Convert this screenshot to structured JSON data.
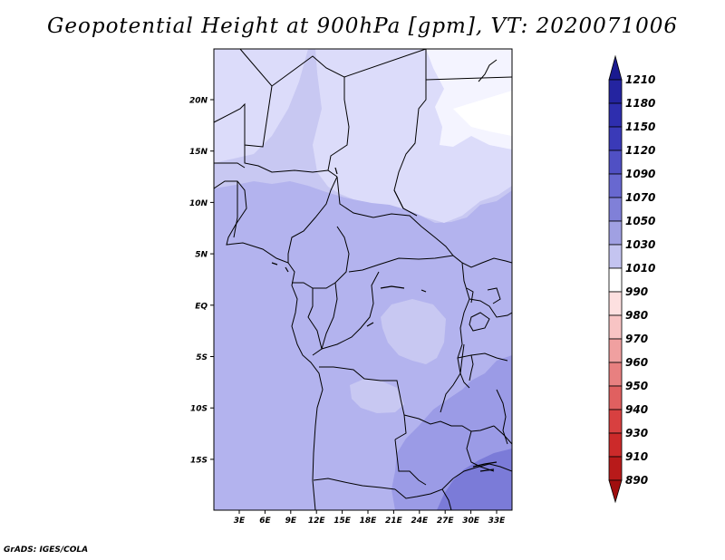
{
  "title": "Geopotential Height at 900hPa [gpm], VT: 2020071006",
  "credit": "GrADS: IGES/COLA",
  "map": {
    "lat_ticks": [
      "20N",
      "15N",
      "10N",
      "5N",
      "EQ",
      "5S",
      "10S",
      "15S"
    ],
    "lon_ticks": [
      "3E",
      "6E",
      "9E",
      "12E",
      "15E",
      "18E",
      "21E",
      "24E",
      "27E",
      "30E",
      "33E"
    ],
    "region": "Central Africa"
  },
  "colorbar": {
    "levels": [
      "1210",
      "1180",
      "1150",
      "1120",
      "1090",
      "1070",
      "1050",
      "1030",
      "1010",
      "990",
      "980",
      "970",
      "960",
      "950",
      "940",
      "930",
      "910",
      "890"
    ],
    "colors": [
      "#1a1a90",
      "#2424a0",
      "#2e2eae",
      "#3a3ab8",
      "#5050c4",
      "#6868d0",
      "#8080d8",
      "#a0a0e2",
      "#c4c4f0",
      "#ffffff",
      "#fde0e0",
      "#f8c4c4",
      "#f0a0a0",
      "#e88080",
      "#e06060",
      "#d84040",
      "#cc2a2a",
      "#b81a1a",
      "#a00e0e"
    ]
  },
  "field_colors": {
    "c1010": "#dcdcfa",
    "c1030": "#c8c8f2",
    "c1050": "#b3b3ee",
    "c1070": "#9b9be6",
    "c1090": "#7b7bd8"
  }
}
